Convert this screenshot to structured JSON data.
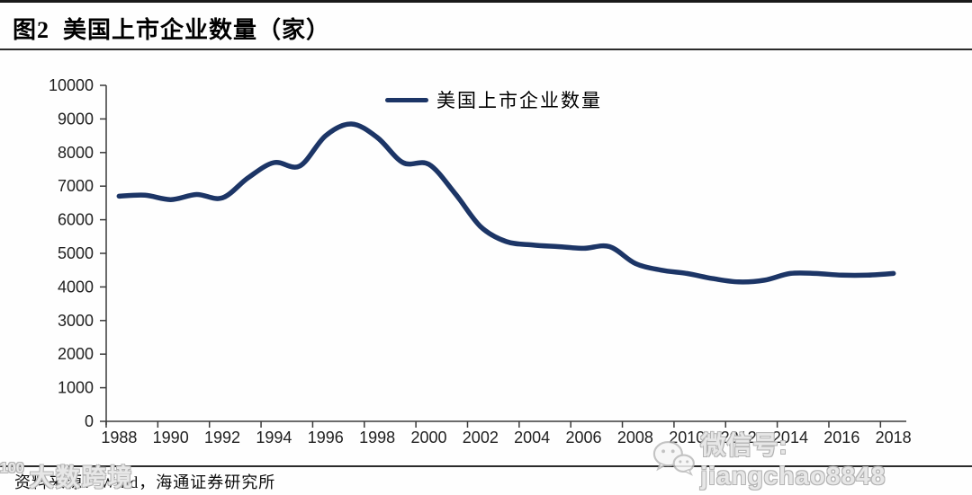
{
  "header": {
    "title": "图2  美国上市企业数量（家）"
  },
  "legend": {
    "label": "美国上市企业数量"
  },
  "footer": {
    "source": "资料来源：Wind，海通证券研究所"
  },
  "watermarks": {
    "right_icon": "wechat-icon",
    "right_text": "微信号: jiangchao8848",
    "left_logo": "100",
    "left_text": "大数跨境"
  },
  "colors": {
    "line": "#1c3566",
    "axis": "#3a3a3a",
    "tick_label": "#212121",
    "watermark": "#c9c9c9"
  },
  "chart_data": {
    "type": "line",
    "title": "美国上市企业数量（家）",
    "xlabel": "",
    "ylabel": "",
    "x": [
      1988,
      1989,
      1990,
      1991,
      1992,
      1993,
      1994,
      1995,
      1996,
      1997,
      1998,
      1999,
      2000,
      2001,
      2002,
      2003,
      2004,
      2005,
      2006,
      2007,
      2008,
      2009,
      2010,
      2011,
      2012,
      2013,
      2014,
      2015,
      2016,
      2017,
      2018
    ],
    "series": [
      {
        "name": "美国上市企业数量",
        "values": [
          6700,
          6730,
          6600,
          6750,
          6650,
          7250,
          7700,
          7600,
          8500,
          8850,
          8450,
          7700,
          7650,
          6800,
          5800,
          5350,
          5250,
          5200,
          5150,
          5200,
          4700,
          4500,
          4400,
          4250,
          4150,
          4200,
          4400,
          4400,
          4350,
          4350,
          4400
        ]
      }
    ],
    "x_ticks": [
      1988,
      1990,
      1992,
      1994,
      1996,
      1998,
      2000,
      2002,
      2004,
      2006,
      2008,
      2010,
      2012,
      2014,
      2016,
      2018
    ],
    "y_ticks": [
      0,
      1000,
      2000,
      3000,
      4000,
      5000,
      6000,
      7000,
      8000,
      9000,
      10000
    ],
    "xlim": [
      1987.5,
      2018.5
    ],
    "ylim": [
      0,
      10000
    ],
    "grid": false,
    "legend_position": "top-center",
    "tick_style": "ticks-between-categories"
  }
}
